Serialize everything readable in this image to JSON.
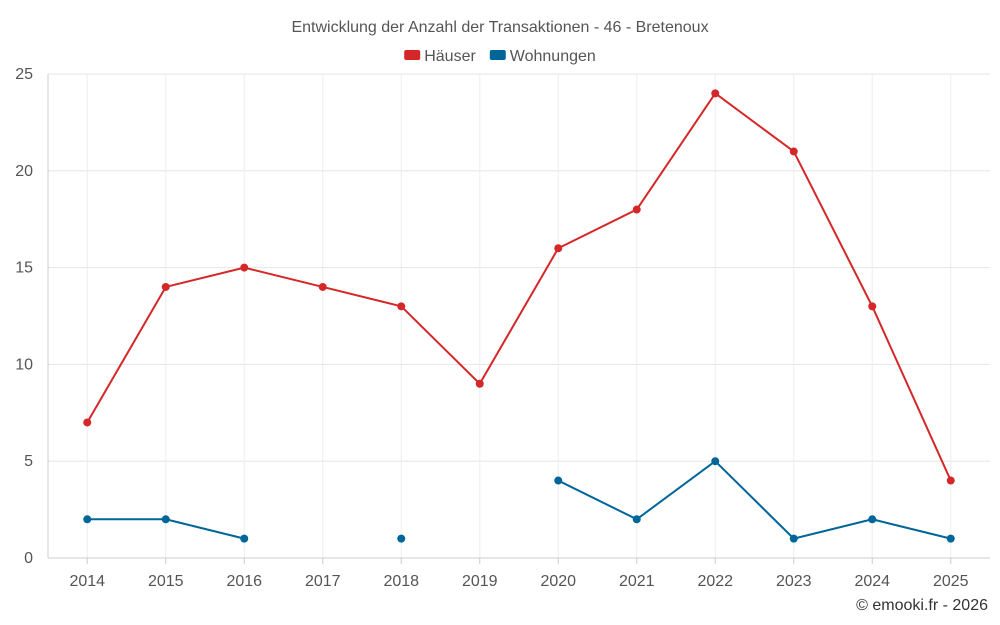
{
  "chart_data": {
    "type": "line",
    "title": "Entwicklung der Anzahl der Transaktionen - 46 - Bretenoux",
    "categories": [
      "2014",
      "2015",
      "2016",
      "2017",
      "2018",
      "2019",
      "2020",
      "2021",
      "2022",
      "2023",
      "2024",
      "2025"
    ],
    "series": [
      {
        "name": "Häuser",
        "color": "#d62728",
        "values": [
          7,
          14,
          15,
          14,
          13,
          9,
          16,
          18,
          24,
          21,
          13,
          4
        ]
      },
      {
        "name": "Wohnungen",
        "color": "#006699",
        "values": [
          2,
          2,
          1,
          null,
          1,
          null,
          4,
          2,
          5,
          1,
          2,
          1
        ]
      }
    ],
    "ylim": [
      0,
      25
    ],
    "yticks": [
      0,
      5,
      10,
      15,
      20,
      25
    ],
    "legend_position": "top-center",
    "grid": true
  },
  "credit": "© emooki.fr - 2026"
}
